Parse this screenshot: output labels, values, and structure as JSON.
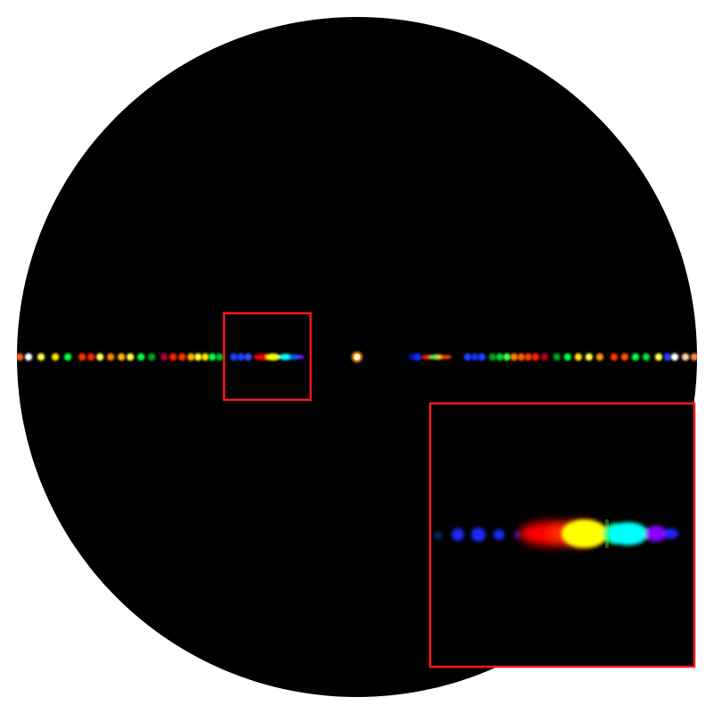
{
  "figure": {
    "description_free": true,
    "colors": {
      "background": "#ffffff",
      "disk": "#000000",
      "highlight_box": "#ff1a1a",
      "spectrum": [
        "#0018ff",
        "#ff0000",
        "#ffff00",
        "#00ff80",
        "#00ffff",
        "#8000ff",
        "#ffffff"
      ]
    },
    "icons": {
      "field": "circular-aperture",
      "central_spot": "white-dot",
      "zoom_box": "red-rectangle",
      "inset": "magnified-inset"
    }
  }
}
